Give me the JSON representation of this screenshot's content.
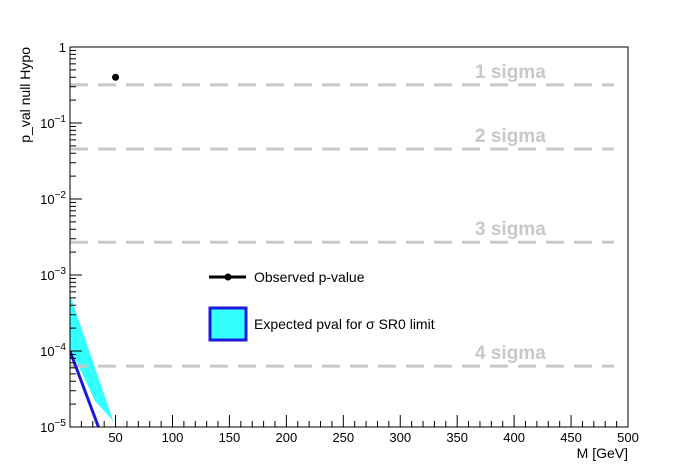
{
  "chart_data": {
    "type": "line",
    "title": "",
    "xlabel": "M  [GeV]",
    "ylabel": "p_val null Hypo",
    "xlim": [
      10,
      500
    ],
    "ylim": [
      1e-05,
      1
    ],
    "yscale": "log",
    "x_ticks": [
      "50",
      "100",
      "150",
      "200",
      "250",
      "300",
      "350",
      "400",
      "450",
      "500"
    ],
    "y_ticks": [
      {
        "mantissa": "10",
        "exp": "−5",
        "value": 1e-05
      },
      {
        "mantissa": "10",
        "exp": "−4",
        "value": 0.0001
      },
      {
        "mantissa": "10",
        "exp": "−3",
        "value": 0.001
      },
      {
        "mantissa": "10",
        "exp": "−2",
        "value": 0.01
      },
      {
        "mantissa": "10",
        "exp": "−1",
        "value": 0.1
      },
      {
        "mantissa": "1",
        "exp": "",
        "value": 1
      }
    ],
    "observed": {
      "name": "Observed p-value",
      "points": [
        {
          "x": 50,
          "y": 0.4
        }
      ],
      "color": "#000000"
    },
    "expected": {
      "name": "Expected pval for σ SR0 limit",
      "line_color": "#1a1ad9",
      "band_color": "#33ffff",
      "line": [
        {
          "x": 10,
          "y": 0.0001
        },
        {
          "x": 35,
          "y": 1e-05
        }
      ],
      "band_upper": [
        {
          "x": 10,
          "y": 0.00055
        },
        {
          "x": 48,
          "y": 1.2e-05
        }
      ],
      "band_lower": [
        {
          "x": 10,
          "y": 0.00011
        },
        {
          "x": 32,
          "y": 2.2e-05
        }
      ]
    },
    "reference_lines": [
      {
        "label": "1 sigma",
        "y": 0.317
      },
      {
        "label": "2 sigma",
        "y": 0.0455
      },
      {
        "label": "3 sigma",
        "y": 0.0027
      },
      {
        "label": "4 sigma",
        "y": 6.33e-05
      }
    ],
    "reference_color": "#c8c8c8",
    "legend_position": "center-left",
    "grid": false
  }
}
